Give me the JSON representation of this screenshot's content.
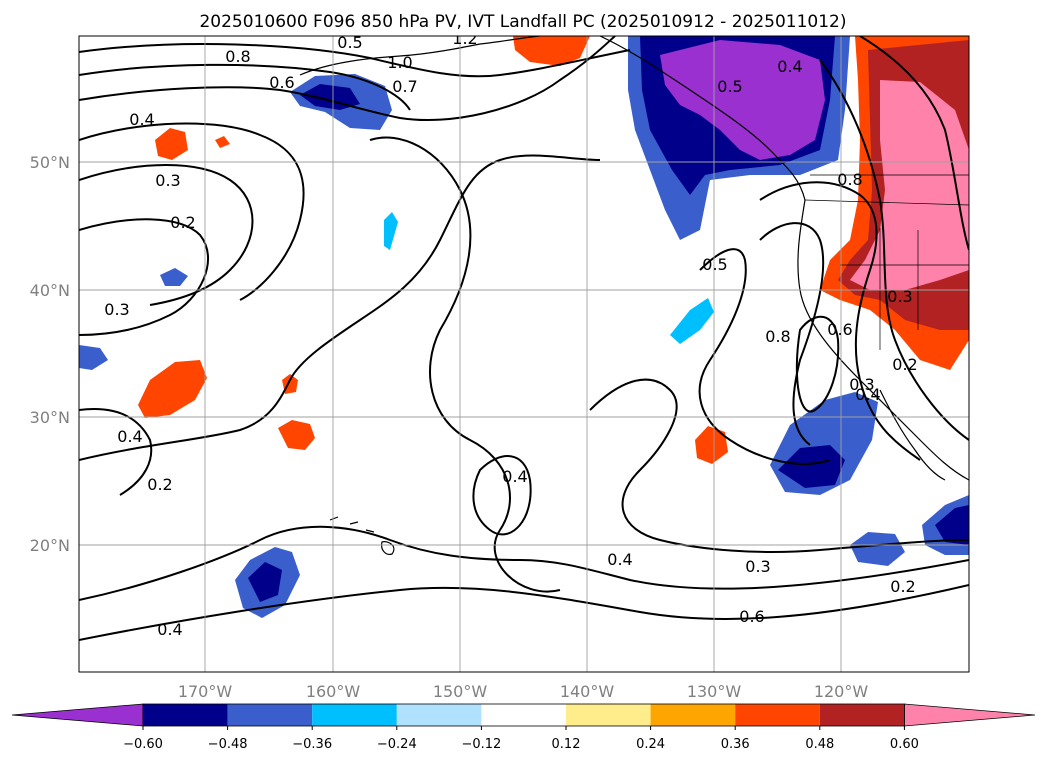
{
  "title": "2025010600 F096 850 hPa PV, IVT Landfall PC (2025010912 - 2025011012)",
  "map": {
    "lon_ticks": [
      "170°W",
      "160°W",
      "150°W",
      "140°W",
      "130°W",
      "120°W"
    ],
    "lat_ticks": [
      "50°N",
      "40°N",
      "30°N",
      "20°N"
    ],
    "gridlines": true
  },
  "colorbar": {
    "tick_labels": [
      "−0.60",
      "−0.48",
      "−0.36",
      "−0.24",
      "−0.12",
      "0.12",
      "0.24",
      "0.36",
      "0.48",
      "0.60"
    ],
    "colors": [
      "#9b30d0",
      "#00008b",
      "#3a5fcd",
      "#00bfff",
      "#b0e2ff",
      "#ffffff",
      "#ffec8b",
      "#ffa500",
      "#ff4500",
      "#b22222",
      "#ff82ab"
    ],
    "extend": "both"
  },
  "contour_labels": [
    "0.8",
    "0.6",
    "0.7",
    "0.4",
    "0.5",
    "1.2",
    "1.0",
    "0.3",
    "0.2",
    "0.3",
    "0.4",
    "0.2",
    "0.4",
    "0.4",
    "0.4",
    "0.5",
    "0.3",
    "0.2",
    "0.6",
    "0.8",
    "0.4",
    "0.5",
    "0.3",
    "0.2",
    "0.8",
    "0.4",
    "0.3",
    "0.6"
  ]
}
